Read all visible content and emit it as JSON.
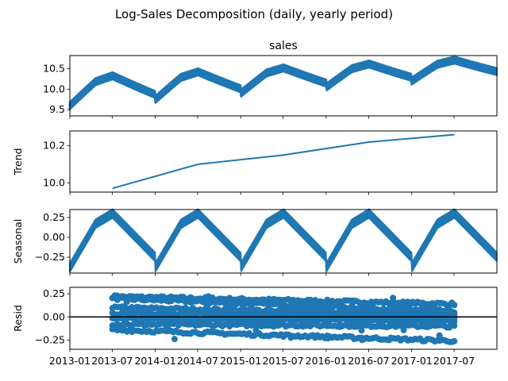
{
  "figure_title": "Log-Sales Decomposition (daily, yearly period)",
  "x_tick_labels": [
    "2013-01",
    "2013-07",
    "2014-01",
    "2014-07",
    "2015-01",
    "2015-07",
    "2016-01",
    "2016-07",
    "2017-01",
    "2017-07"
  ],
  "colors": {
    "series": "#1f77b4",
    "zero_line": "#000000",
    "axes": "#000000"
  },
  "chart_data": [
    {
      "type": "line",
      "title": "sales",
      "ylabel": "",
      "x_range": [
        "2013-01-01",
        "2017-12-31"
      ],
      "ylim": [
        9.35,
        10.82
      ],
      "y_ticks": [
        9.5,
        10.0,
        10.5
      ],
      "y_tick_labels": [
        "9.5",
        "10.0",
        "10.5"
      ],
      "annual_shape": {
        "baseline": 9.55,
        "yearly_growth": 0.15,
        "amplitude_start": 0.55,
        "weekly_band": 0.17
      },
      "note_style": "dense daily series drawn as a thick band"
    },
    {
      "type": "line",
      "title": "",
      "ylabel": "Trend",
      "ylim": [
        9.95,
        10.28
      ],
      "y_ticks": [
        10.0,
        10.2
      ],
      "y_tick_labels": [
        "10.0",
        "10.2"
      ],
      "x": [
        "2013-07-02",
        "2014-07-02",
        "2015-07-02",
        "2016-07-02",
        "2017-07-02"
      ],
      "values": [
        9.97,
        10.1,
        10.15,
        10.22,
        10.26
      ]
    },
    {
      "type": "line",
      "title": "",
      "ylabel": "Seasonal",
      "ylim": [
        -0.45,
        0.35
      ],
      "y_ticks": [
        0.25,
        0.0,
        -0.25
      ],
      "y_tick_labels": [
        "0.25",
        "0.00",
        "−0.25"
      ],
      "yearly_pattern": {
        "min": -0.38,
        "max": 0.3,
        "weekly_band": 0.11
      }
    },
    {
      "type": "scatter",
      "title": "",
      "ylabel": "Resid",
      "ylim": [
        -0.35,
        0.32
      ],
      "y_ticks": [
        0.25,
        0.0,
        -0.25
      ],
      "y_tick_labels": [
        "0.25",
        "0.00",
        "−0.25"
      ],
      "x_range": [
        "2013-07-02",
        "2017-07-02"
      ],
      "zero_line": true,
      "bands": [
        {
          "start": 0.22,
          "end": 0.14
        },
        {
          "start": 0.2,
          "end": 0.06
        },
        {
          "start": 0.1,
          "end": 0.03
        },
        {
          "start": 0.04,
          "end": 0.0
        },
        {
          "start": -0.02,
          "end": -0.04
        },
        {
          "start": -0.08,
          "end": -0.1
        },
        {
          "start": -0.14,
          "end": -0.26
        }
      ]
    }
  ]
}
